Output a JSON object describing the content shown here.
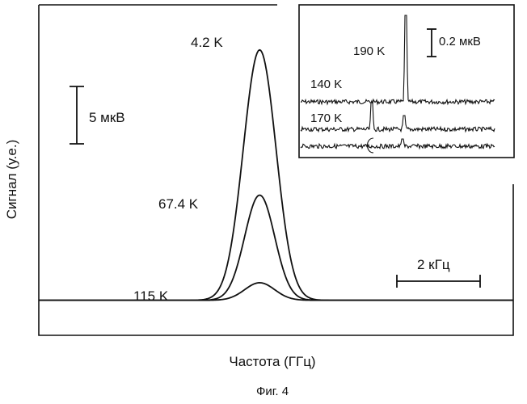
{
  "chart_data": [
    {
      "type": "line",
      "xlabel": "Частота (ГГц)",
      "ylabel": "Сигнал (у.е.)",
      "grid": false,
      "x_range_khz": [
        -7.8,
        9.6
      ],
      "y_range_uv": [
        -1.4,
        11.8
      ],
      "peak_center_khz": 0.3,
      "series": [
        {
          "name": "4.2 K",
          "amplitude_uv": 10.0,
          "width_khz": 0.6
        },
        {
          "name": "67.4 K",
          "amplitude_uv": 4.2,
          "width_khz": 0.55
        },
        {
          "name": "115 K",
          "amplitude_uv": 0.7,
          "width_khz": 0.55
        }
      ],
      "scale_bars": [
        {
          "label": "5 мкВ",
          "value": 5,
          "unit": "мкВ",
          "axis": "y"
        },
        {
          "label": "2 кГц",
          "value": 2,
          "unit": "кГц",
          "axis": "x"
        }
      ]
    },
    {
      "type": "line",
      "title": "",
      "grid": false,
      "series": [
        {
          "name": "140 K",
          "offset_uv": 0.0
        },
        {
          "name": "170 K",
          "offset_uv": -0.27
        },
        {
          "name": "190 K",
          "offset_uv": -0.48
        }
      ],
      "scale_bars": [
        {
          "label": "0.2 мкВ",
          "value": 0.2,
          "unit": "мкВ",
          "axis": "y"
        }
      ]
    }
  ],
  "caption": "Фиг. 4"
}
